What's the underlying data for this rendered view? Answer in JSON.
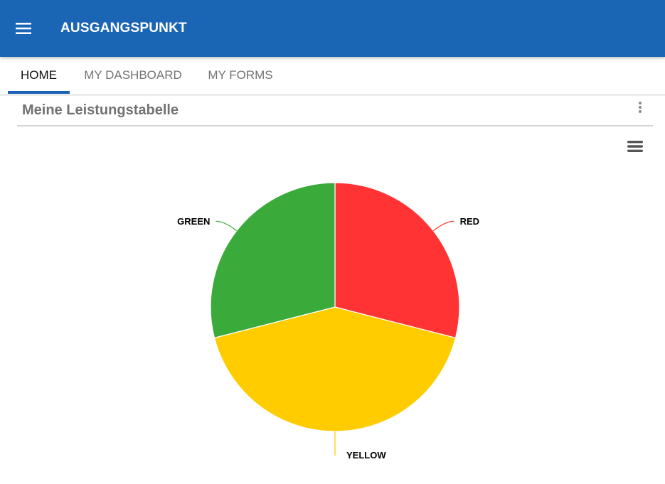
{
  "app": {
    "title": "AUSGANGSPUNKT",
    "menu_icon": "hamburger-menu-icon",
    "header_color": "#1b65b5"
  },
  "tabs": [
    {
      "label": "HOME",
      "active": true
    },
    {
      "label": "MY DASHBOARD",
      "active": false
    },
    {
      "label": "MY FORMS",
      "active": false
    }
  ],
  "widget": {
    "title": "Meine Leistungstabelle",
    "options_icon": "vertical-dots-icon",
    "chart_menu_icon": "chart-context-menu-icon"
  },
  "chart_data": {
    "type": "pie",
    "title": "",
    "slices": [
      {
        "label": "RED",
        "value": 1,
        "color": "#ff3333"
      },
      {
        "label": "YELLOW",
        "value": 1.45,
        "color": "#ffcc00"
      },
      {
        "label": "GREEN",
        "value": 1,
        "color": "#3aaa3a"
      }
    ],
    "start_angle_deg": 0,
    "data_labels": true,
    "legend": "none"
  }
}
